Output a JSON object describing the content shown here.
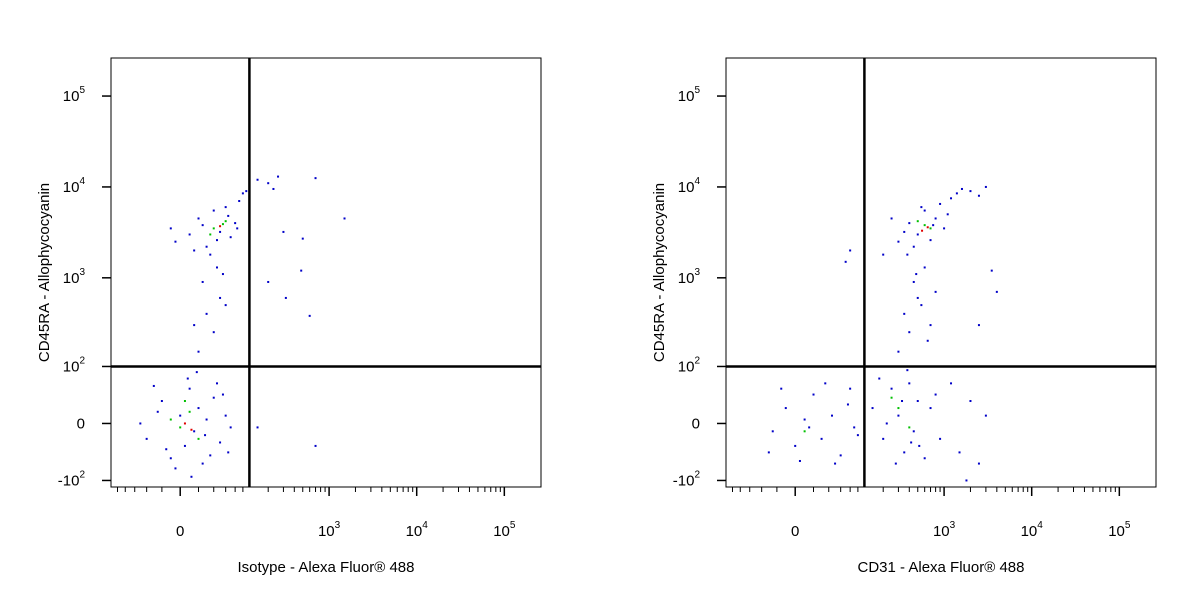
{
  "chart_data": [
    {
      "type": "scatter",
      "scale": "biexponential",
      "xlabel": "Isotype - Alexa Fluor® 488",
      "ylabel": "CD45RA - Allophycocyanin",
      "xlim": [
        -120,
        262144
      ],
      "ylim": [
        -120,
        262144
      ],
      "xticks": [
        0,
        {
          "value": 1000,
          "label": "10^3"
        },
        {
          "value": 10000,
          "label": "10^4"
        },
        {
          "value": 100000,
          "label": "10^5"
        }
      ],
      "xminorticks": [
        -100,
        -80,
        -60,
        -40,
        -20,
        20,
        40,
        60,
        80,
        100,
        200,
        300,
        400,
        500,
        600,
        700,
        800,
        900,
        2000,
        3000,
        4000,
        5000,
        6000,
        7000,
        8000,
        9000,
        20000,
        30000,
        40000,
        50000,
        60000,
        70000,
        80000,
        90000
      ],
      "yticks": [
        {
          "value": 100000,
          "label": "10^5"
        },
        {
          "value": 10000,
          "label": "10^4"
        },
        {
          "value": 1000,
          "label": "10^3"
        },
        {
          "value": 100,
          "label": "10^2"
        },
        0,
        {
          "value": -100,
          "label": "-10^2"
        }
      ],
      "gates": {
        "x": 120,
        "y": 100
      },
      "series": [
        {
          "color": "#0000c8",
          "x": [
            -40,
            -20,
            -10,
            0,
            5,
            10,
            15,
            20,
            25,
            30,
            40,
            50,
            60,
            -30,
            -5,
            35,
            45,
            70,
            -50,
            12,
            8,
            55,
            -15,
            28,
            65,
            -25,
            18,
            20,
            40,
            30,
            50,
            25,
            45,
            35,
            60,
            15,
            55,
            -5,
            10,
            20,
            30,
            40,
            50,
            60,
            70,
            80,
            90,
            100,
            25,
            -10,
            65,
            45,
            110,
            85,
            15,
            150,
            200,
            260,
            230,
            700,
            1500,
            500,
            480,
            300,
            320,
            600,
            150,
            700,
            200
          ],
          "y": [
            -20,
            30,
            -50,
            10,
            -30,
            50,
            -10,
            20,
            -60,
            5,
            35,
            -25,
            10,
            55,
            -70,
            -45,
            60,
            -5,
            0,
            -90,
            70,
            40,
            -35,
            -15,
            -40,
            15,
            85,
            150,
            250,
            400,
            600,
            900,
            1300,
            1800,
            500,
            300,
            1100,
            2500,
            3000,
            4500,
            2200,
            5500,
            3200,
            6000,
            2800,
            4000,
            7000,
            8500,
            3800,
            3500,
            4800,
            2600,
            9000,
            3500,
            2000,
            12000,
            11000,
            13000,
            9500,
            12500,
            4500,
            2700,
            1200,
            3200,
            600,
            380,
            -5,
            -30,
            900
          ]
        },
        {
          "color": "#00c000",
          "x": [
            0,
            10,
            20,
            5,
            -10,
            40,
            55,
            35,
            60
          ],
          "y": [
            -5,
            15,
            -20,
            30,
            5,
            3500,
            3900,
            3000,
            4200
          ]
        },
        {
          "color": "#e00000",
          "x": [
            5,
            12,
            50
          ],
          "y": [
            0,
            -8,
            3700
          ]
        }
      ]
    },
    {
      "type": "scatter",
      "scale": "biexponential",
      "xlabel": "CD31 - Alexa Fluor® 488",
      "ylabel": "CD45RA - Allophycocyanin",
      "xlim": [
        -120,
        262144
      ],
      "ylim": [
        -120,
        262144
      ],
      "xticks": [
        0,
        {
          "value": 1000,
          "label": "10^3"
        },
        {
          "value": 10000,
          "label": "10^4"
        },
        {
          "value": 100000,
          "label": "10^5"
        }
      ],
      "xminorticks": [
        -100,
        -80,
        -60,
        -40,
        -20,
        20,
        40,
        60,
        80,
        100,
        200,
        300,
        400,
        500,
        600,
        700,
        800,
        900,
        2000,
        3000,
        4000,
        5000,
        6000,
        7000,
        8000,
        9000,
        20000,
        30000,
        40000,
        50000,
        60000,
        70000,
        80000,
        90000
      ],
      "yticks": [
        {
          "value": 100000,
          "label": "10^5"
        },
        {
          "value": 10000,
          "label": "10^4"
        },
        {
          "value": 1000,
          "label": "10^3"
        },
        {
          "value": 100,
          "label": "10^2"
        },
        0,
        {
          "value": -100,
          "label": "-10^2"
        }
      ],
      "gates": {
        "x": 120,
        "y": 100
      },
      "series": [
        {
          "color": "#0000c8",
          "x": [
            -25,
            -10,
            0,
            10,
            20,
            30,
            45,
            60,
            75,
            90,
            -15,
            5,
            35,
            50,
            80,
            100,
            -30,
            15,
            150,
            200,
            250,
            300,
            350,
            400,
            450,
            500,
            600,
            700,
            800,
            180,
            280,
            380,
            520,
            900,
            1200,
            1500,
            2000,
            2500,
            3000,
            220,
            330,
            420,
            300,
            400,
            350,
            500,
            450,
            600,
            380,
            550,
            700,
            480,
            650,
            800,
            200,
            300,
            400,
            500,
            600,
            700,
            800,
            900,
            1000,
            1200,
            1400,
            1600,
            2000,
            2500,
            3000,
            350,
            450,
            550,
            750,
            1100,
            250,
            3500,
            4000,
            2500,
            70,
            80,
            1800
          ],
          "y": [
            -10,
            20,
            -30,
            5,
            40,
            -20,
            10,
            -45,
            25,
            -5,
            50,
            -55,
            60,
            -60,
            50,
            -15,
            -40,
            -5,
            20,
            -20,
            50,
            10,
            -40,
            60,
            -10,
            30,
            -50,
            20,
            40,
            70,
            -60,
            90,
            -30,
            -20,
            60,
            -40,
            30,
            -60,
            10,
            0,
            30,
            -25,
            150,
            250,
            400,
            600,
            900,
            1300,
            1800,
            500,
            300,
            1100,
            200,
            700,
            1800,
            2500,
            4000,
            3000,
            5500,
            2600,
            4500,
            6500,
            3500,
            7500,
            8500,
            9500,
            9000,
            8000,
            10000,
            3200,
            2200,
            6000,
            3800,
            5000,
            4500,
            1200,
            700,
            300,
            1500,
            2000,
            -100
          ]
        },
        {
          "color": "#00c000",
          "x": [
            10,
            300,
            400,
            250,
            600,
            700,
            500
          ],
          "y": [
            -10,
            20,
            -5,
            35,
            3800,
            3500,
            4200
          ]
        },
        {
          "color": "#e00000",
          "x": [
            650,
            560
          ],
          "y": [
            3600,
            3300
          ]
        }
      ]
    }
  ]
}
